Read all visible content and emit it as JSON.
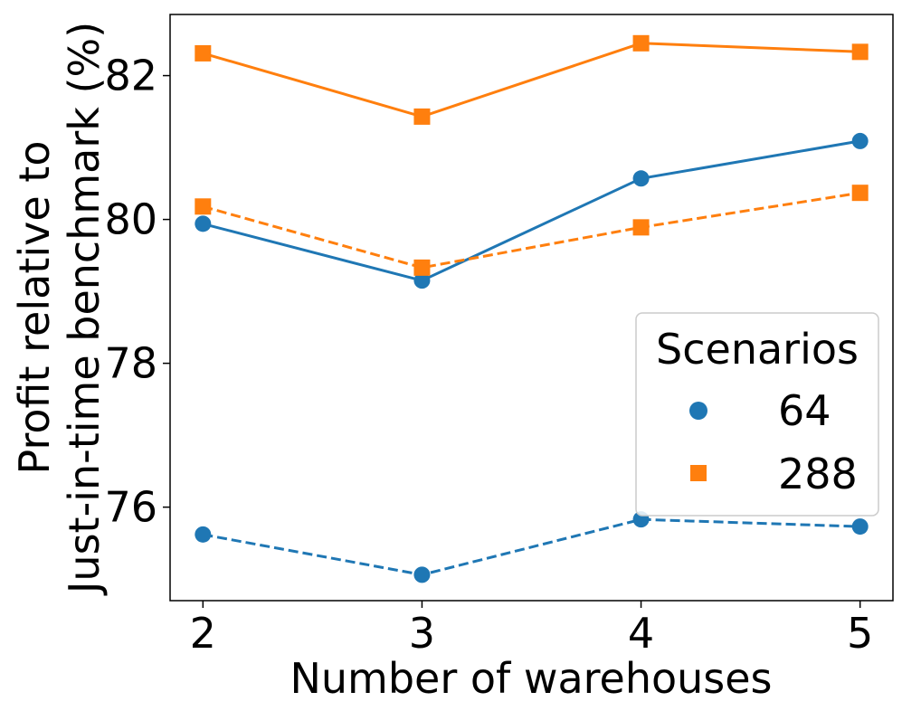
{
  "chart_data": {
    "type": "line",
    "xlabel": "Number of warehouses",
    "ylabel_lines": [
      "Profit relative to",
      "Just-in-time benchmark (%)"
    ],
    "x": [
      2,
      3,
      4,
      5
    ],
    "xlim": [
      1.85,
      5.15
    ],
    "ylim": [
      74.7,
      82.85
    ],
    "xticks": [
      "2",
      "3",
      "4",
      "5"
    ],
    "yticks": [
      76,
      78,
      80,
      82
    ],
    "ytick_labels": [
      "76",
      "78",
      "80",
      "82"
    ],
    "grid": false,
    "series": [
      {
        "name": "64",
        "marker": "circle",
        "linestyle": "solid",
        "color": "#1f77b4",
        "values": [
          79.94,
          79.15,
          80.57,
          81.09
        ]
      },
      {
        "name": "288",
        "marker": "square",
        "linestyle": "solid",
        "color": "#ff7f0e",
        "values": [
          82.31,
          81.43,
          82.45,
          82.33
        ]
      },
      {
        "name": "64",
        "marker": "circle",
        "linestyle": "dashed",
        "color": "#1f77b4",
        "values": [
          75.62,
          75.06,
          75.83,
          75.73
        ]
      },
      {
        "name": "288",
        "marker": "square",
        "linestyle": "dashed",
        "color": "#ff7f0e",
        "values": [
          80.18,
          79.33,
          79.89,
          80.37
        ]
      }
    ],
    "legend": {
      "title": "Scenarios",
      "placement": "center-right",
      "entries": [
        {
          "label": "64",
          "marker": "circle",
          "color": "#1f77b4"
        },
        {
          "label": "288",
          "marker": "square",
          "color": "#ff7f0e"
        }
      ]
    }
  }
}
